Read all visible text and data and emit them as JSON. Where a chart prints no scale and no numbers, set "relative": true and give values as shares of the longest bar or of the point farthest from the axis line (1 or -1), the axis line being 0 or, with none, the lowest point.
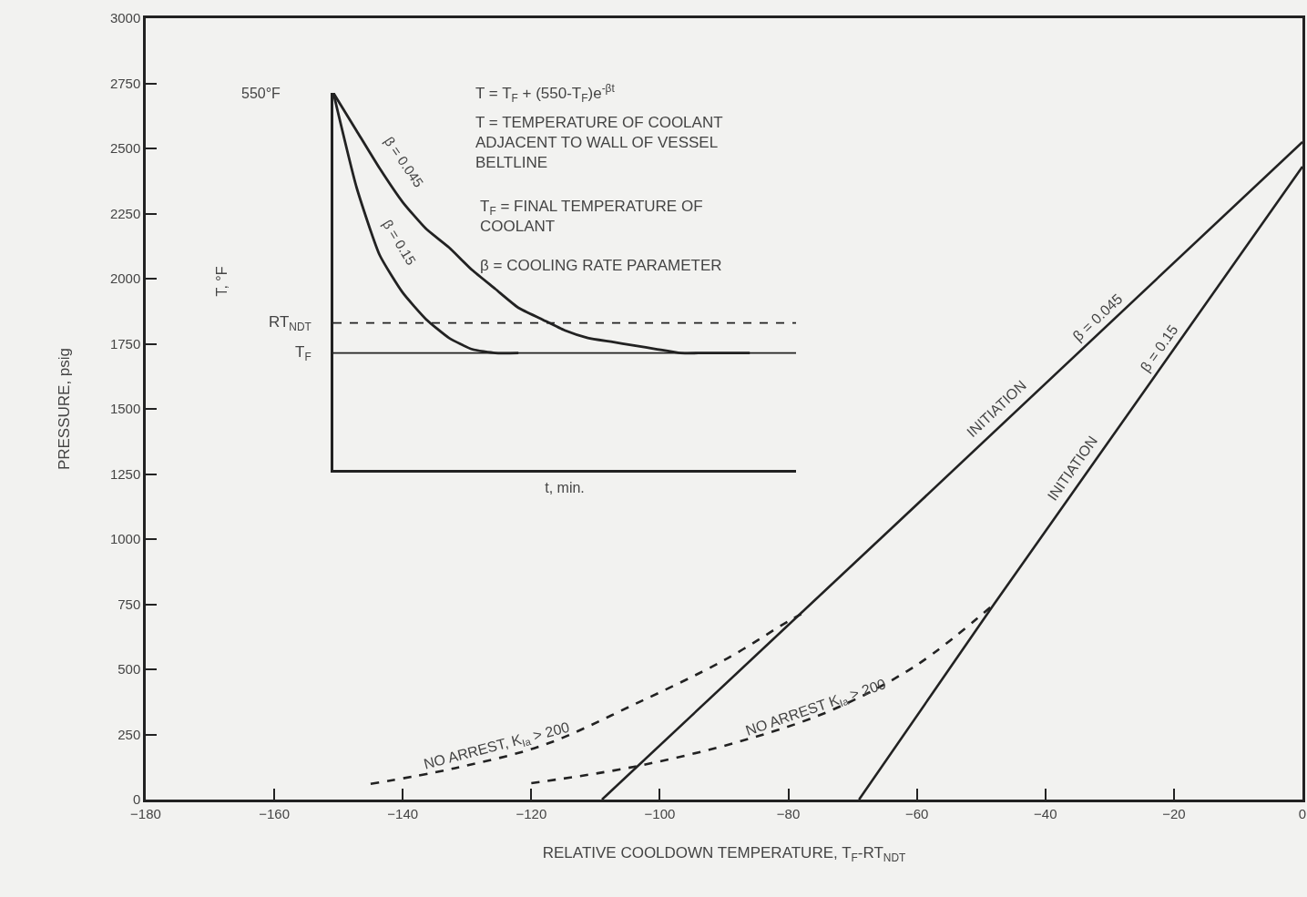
{
  "chart_data": [
    {
      "type": "line",
      "xlabel": "RELATIVE COOLDOWN TEMPERATURE, T$_{F}$-RT$_{NDT}$",
      "ylabel": "PRESSURE, psig",
      "xlim": [
        -180,
        0
      ],
      "ylim": [
        0,
        3000
      ],
      "xticks": [
        -180,
        -160,
        -140,
        -120,
        -100,
        -80,
        -60,
        -40,
        -20,
        0
      ],
      "yticks": [
        0,
        250,
        500,
        750,
        1000,
        1250,
        1500,
        1750,
        2000,
        2250,
        2500,
        2750,
        3000
      ],
      "grid": false,
      "marker": "none",
      "series": [
        {
          "name": "β = 0.045",
          "color": "#222222",
          "line_style": "solid",
          "x": [
            -109,
            -64,
            0
          ],
          "values": [
            0,
            1040,
            2525
          ]
        },
        {
          "name": "β = 0.15",
          "color": "#222222",
          "line_style": "solid",
          "x": [
            -69,
            -48,
            0
          ],
          "values": [
            0,
            750,
            2430
          ]
        },
        {
          "name": "NO ARREST, K$_{Ia}$ > 200",
          "color": "#222222",
          "line_style": "dashed",
          "x": [
            -145,
            -132,
            -118,
            -104,
            -90,
            -80,
            -78
          ],
          "values": [
            60,
            120,
            210,
            365,
            535,
            685,
            712
          ]
        },
        {
          "name": "NO ARREST K$_{Ia}$ > 200",
          "color": "#222222",
          "line_style": "dashed",
          "x": [
            -120,
            -104,
            -87,
            -73,
            -60,
            -48
          ],
          "values": [
            63,
            126,
            227,
            346,
            517,
            750
          ]
        }
      ],
      "annotations": [
        {
          "text": "INITIATION",
          "x": -46,
          "y": 1460
        },
        {
          "text": "INITIATION",
          "x": -34,
          "y": 1240
        }
      ]
    },
    {
      "type": "line",
      "relative": true,
      "xlabel": "t, min.",
      "ylabel": "T, °F",
      "grid": false,
      "marker": "none",
      "categories": [
        null,
        null,
        null,
        null,
        null,
        null,
        null,
        null,
        null,
        null,
        null,
        null,
        null,
        null,
        null,
        null,
        null,
        null,
        null,
        null,
        null
      ],
      "series": [
        {
          "name": "β = 0.045",
          "color": "#222222",
          "values": [
            1.0,
            0.9,
            0.8,
            0.71,
            0.64,
            0.59,
            0.53,
            0.48,
            0.43,
            0.4,
            0.37,
            0.35,
            0.34,
            0.33,
            0.32,
            0.31,
            0.31,
            0.31,
            0.31,
            null,
            null
          ]
        },
        {
          "name": "β = 0.15",
          "color": "#222222",
          "values": [
            1.0,
            0.75,
            0.57,
            0.47,
            0.4,
            0.35,
            0.32,
            0.31,
            0.31,
            null,
            null,
            null,
            null,
            null,
            null,
            null,
            null,
            null,
            null,
            null,
            null
          ]
        }
      ],
      "ref_lines": [
        {
          "axis": "y",
          "value": 0.39,
          "label": "RT$_{NDT}$",
          "color": "#222222",
          "line_style": "dashed"
        },
        {
          "axis": "y",
          "value": 0.31,
          "label": "T$_{F}$",
          "color": "#222222",
          "line_style": "solid"
        }
      ],
      "annotations": [
        "550°F",
        "T = T$_{F}$ + (550-T$_{F}$)e$^{-βt}$",
        "T = TEMPERATURE OF COOLANT\nADJACENT TO WALL OF VESSEL\nBELTLINE",
        "T$_{F}$ = FINAL TEMPERATURE OF\nCOOLANT",
        "β = COOLING RATE PARAMETER"
      ]
    }
  ]
}
